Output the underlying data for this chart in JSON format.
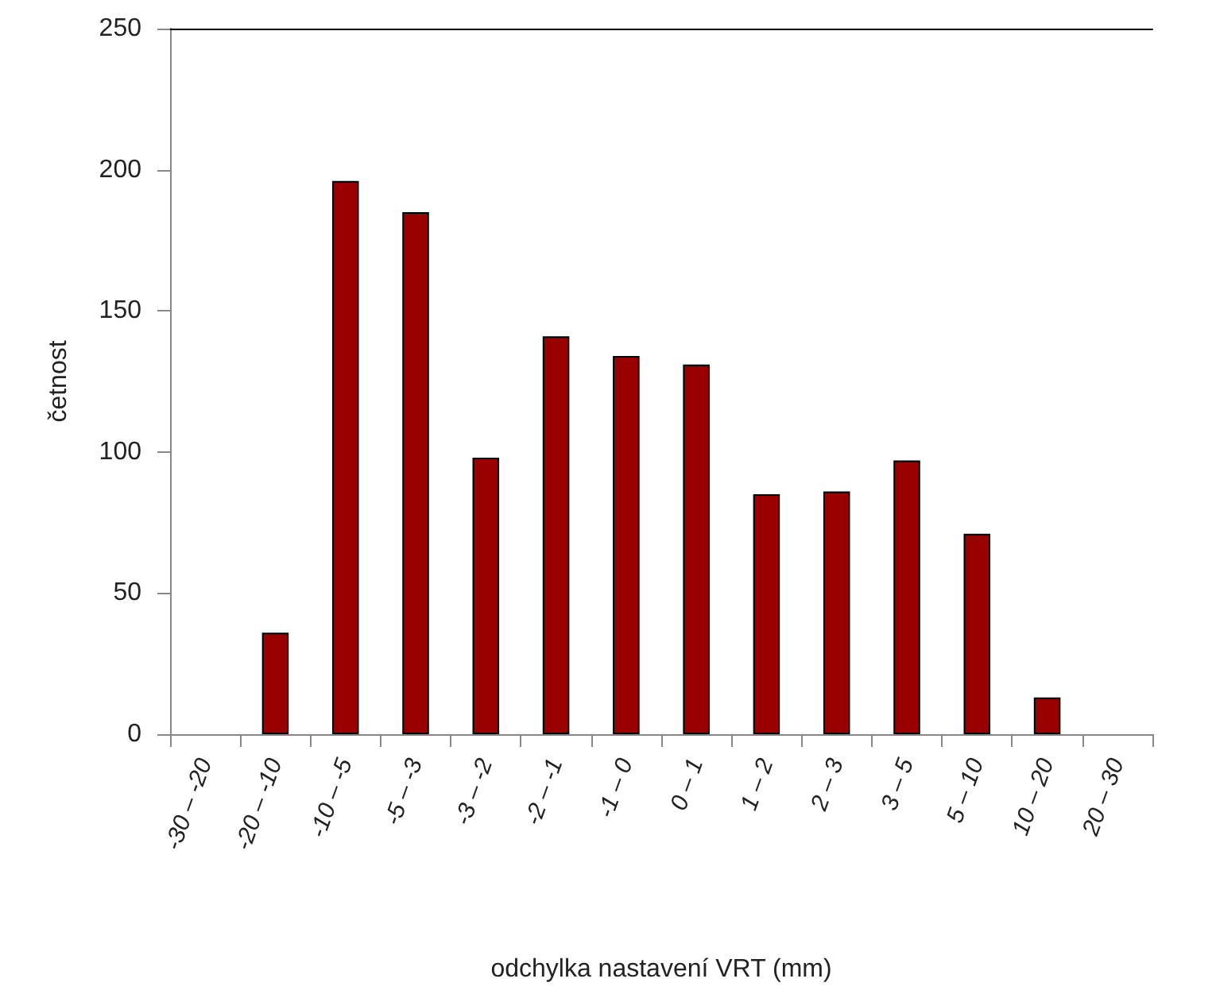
{
  "chart_data": {
    "type": "bar",
    "xlabel": "odchylka nastavení VRT (mm)",
    "ylabel": "četnost",
    "categories": [
      "-30 – -20",
      "-20 – -10",
      "-10 – -5",
      "-5 – -3",
      "-3 – -2",
      "-2 – -1",
      "-1 – 0",
      "0 – 1",
      "1 – 2",
      "2 – 3",
      "3 – 5",
      "5 – 10",
      "10 – 20",
      "20 – 30"
    ],
    "values": [
      0,
      36,
      196,
      185,
      98,
      141,
      134,
      131,
      85,
      86,
      97,
      71,
      13,
      0
    ],
    "color": "#990000",
    "ylim": [
      0,
      250
    ],
    "yticks": [
      0,
      50,
      100,
      150,
      200,
      250
    ],
    "grid": false
  }
}
